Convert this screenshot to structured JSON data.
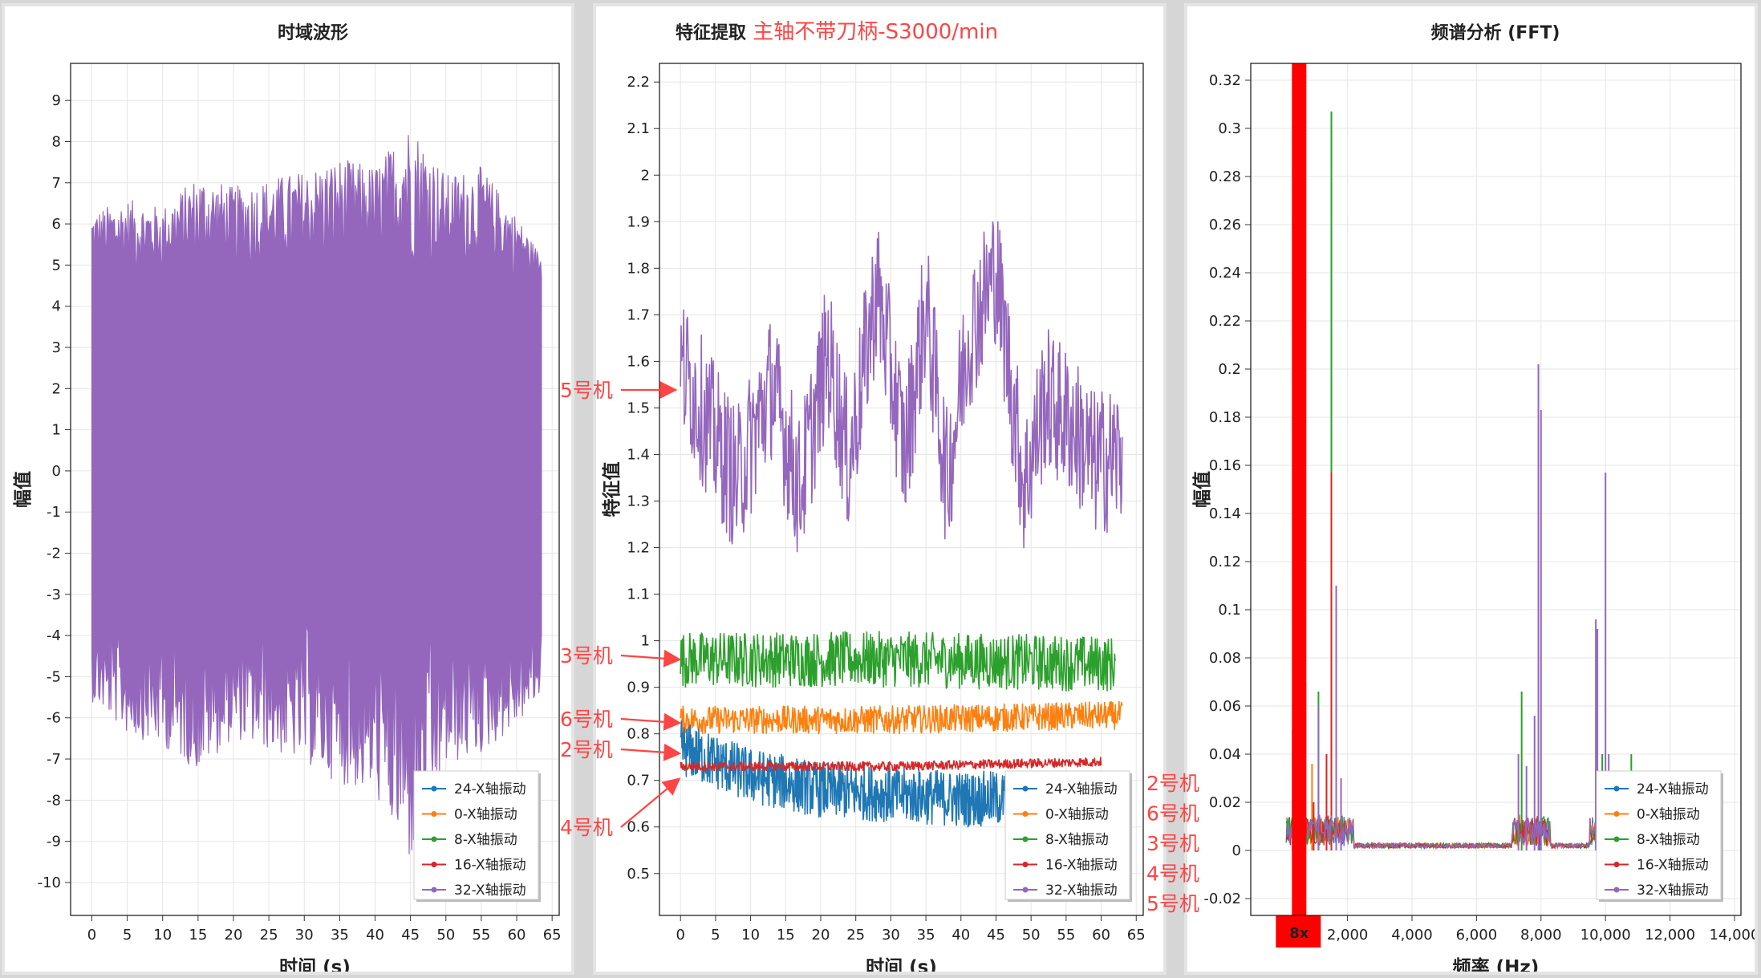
{
  "colors": {
    "s24": "#1f77b4",
    "s0": "#ff7f0e",
    "s8": "#2ca02c",
    "s16": "#d62728",
    "s32": "#9467bd",
    "annotation": "#ff4444",
    "marker": "#ff0000"
  },
  "legend": [
    "24-X轴振动",
    "0-X轴振动",
    "8-X轴振动",
    "16-X轴振动",
    "32-X轴振动"
  ],
  "header_suffix": "主轴不带刀柄-S3000/min",
  "chart_data": [
    {
      "type": "line",
      "title": "时域波形",
      "xlabel": "时间 (s)",
      "ylabel": "幅值",
      "xlim": [
        -3,
        66
      ],
      "ylim": [
        -10.8,
        9.9
      ],
      "xticks": [
        0,
        5,
        10,
        15,
        20,
        25,
        30,
        35,
        40,
        45,
        50,
        55,
        60,
        65
      ],
      "yticks": [
        -10,
        -9,
        -8,
        -7,
        -6,
        -5,
        -4,
        -3,
        -2,
        -1,
        0,
        1,
        2,
        3,
        4,
        5,
        6,
        7,
        8,
        9
      ],
      "grid": true,
      "legend_position": "bottom-right",
      "series": [
        {
          "name": "32-X轴振动",
          "color_key": "s32",
          "x": [
            0,
            5,
            10,
            15,
            20,
            25,
            30,
            35,
            40,
            45,
            50,
            55,
            60,
            63.5
          ],
          "upper": [
            6.3,
            6.6,
            6.4,
            7.2,
            6.9,
            7.1,
            7.3,
            7.6,
            7.4,
            8.5,
            7.2,
            7.4,
            6.2,
            5.2
          ],
          "lower": [
            -5.6,
            -6.4,
            -6.7,
            -7.3,
            -6.5,
            -6.8,
            -7.1,
            -7.6,
            -7.9,
            -9.6,
            -7.2,
            -6.9,
            -6.2,
            -5.5
          ],
          "core": [
            4.5,
            -3.5
          ]
        }
      ]
    },
    {
      "type": "line",
      "title": "特征提取",
      "xlabel": "时间 (s)",
      "ylabel": "特征值",
      "xlim": [
        -3,
        66
      ],
      "ylim": [
        0.41,
        2.24
      ],
      "xticks": [
        0,
        5,
        10,
        15,
        20,
        25,
        30,
        35,
        40,
        45,
        50,
        55,
        60,
        65
      ],
      "yticks": [
        0.5,
        0.6,
        0.7,
        0.8,
        0.9,
        1,
        1.1,
        1.2,
        1.3,
        1.4,
        1.5,
        1.6,
        1.7,
        1.8,
        1.9,
        2,
        2.1,
        2.2
      ],
      "grid": true,
      "legend_position": "bottom-right",
      "series": [
        {
          "name": "24-X轴振动",
          "color_key": "s24",
          "x_end": 48,
          "trend": [
            [
              0,
              0.77
            ],
            [
              10,
              0.71
            ],
            [
              20,
              0.68
            ],
            [
              30,
              0.67
            ],
            [
              40,
              0.66
            ],
            [
              48,
              0.66
            ]
          ],
          "noise": 0.06
        },
        {
          "name": "0-X轴振动",
          "color_key": "s0",
          "x_end": 63,
          "trend": [
            [
              0,
              0.83
            ],
            [
              30,
              0.83
            ],
            [
              63,
              0.84
            ]
          ],
          "noise": 0.03
        },
        {
          "name": "8-X轴振动",
          "color_key": "s8",
          "x_end": 62,
          "trend": [
            [
              0,
              0.96
            ],
            [
              30,
              0.96
            ],
            [
              62,
              0.95
            ]
          ],
          "noise": 0.06
        },
        {
          "name": "16-X轴振动",
          "color_key": "s16",
          "x_end": 60,
          "trend": [
            [
              0,
              0.73
            ],
            [
              30,
              0.73
            ],
            [
              60,
              0.74
            ]
          ],
          "noise": 0.01
        },
        {
          "name": "32-X轴振动",
          "color_key": "s32",
          "x_end": 63,
          "peaks": [
            [
              0.5,
              1.58
            ],
            [
              3.5,
              1.48
            ],
            [
              8,
              1.34
            ],
            [
              13,
              1.55
            ],
            [
              17,
              1.32
            ],
            [
              21,
              1.62
            ],
            [
              24,
              1.38
            ],
            [
              28,
              1.76
            ],
            [
              32,
              1.4
            ],
            [
              35,
              1.72
            ],
            [
              38,
              1.34
            ],
            [
              41,
              1.65
            ],
            [
              45,
              1.8
            ],
            [
              49,
              1.33
            ],
            [
              52,
              1.52
            ],
            [
              56,
              1.46
            ],
            [
              59,
              1.38
            ],
            [
              63,
              1.4
            ]
          ],
          "noise": 0.16
        }
      ]
    },
    {
      "type": "line",
      "title": "频谱分析 (FFT)",
      "xlabel": "频率 (Hz)",
      "ylabel": "幅值",
      "xlim": [
        -1000,
        14200
      ],
      "ylim": [
        -0.027,
        0.327
      ],
      "xticks": [
        2000,
        4000,
        6000,
        8000,
        10000,
        12000,
        14000
      ],
      "xtick_labels": [
        "2,000",
        "4,000",
        "6,000",
        "8,000",
        "10,000",
        "12,000",
        "14,000"
      ],
      "yticks": [
        -0.02,
        0,
        0.02,
        0.04,
        0.06,
        0.08,
        0.1,
        0.12,
        0.14,
        0.16,
        0.18,
        0.2,
        0.22,
        0.24,
        0.26,
        0.28,
        0.3,
        0.32
      ],
      "ytick_labels": [
        "-0.02",
        "0",
        "0.02",
        "0.04",
        "0.06",
        "0.08",
        "0.1",
        "0.12",
        "0.14",
        "0.16",
        "0.18",
        "0.2",
        "0.22",
        "0.24",
        "0.26",
        "0.28",
        "0.3",
        "0.32"
      ],
      "grid": true,
      "legend_position": "bottom-right",
      "series": [
        {
          "name": "24-X轴振动",
          "color_key": "s24",
          "peaks": [
            [
              400,
              0.006
            ],
            [
              7950,
              0.012
            ]
          ]
        },
        {
          "name": "0-X轴振动",
          "color_key": "s0",
          "peaks": [
            [
              900,
              0.036
            ],
            [
              1350,
              0.04
            ],
            [
              9700,
              0.034
            ]
          ]
        },
        {
          "name": "8-X轴振动",
          "color_key": "s8",
          "peaks": [
            [
              1100,
              0.066
            ],
            [
              1500,
              0.307
            ],
            [
              7400,
              0.066
            ],
            [
              9900,
              0.04
            ],
            [
              10800,
              0.04
            ]
          ]
        },
        {
          "name": "16-X轴振动",
          "color_key": "s16",
          "peaks": [
            [
              1500,
              0.157
            ],
            [
              1350,
              0.04
            ],
            [
              950,
              0.02
            ]
          ]
        },
        {
          "name": "32-X轴振动",
          "color_key": "s32",
          "peaks": [
            [
              300,
              0.05
            ],
            [
              700,
              0.07
            ],
            [
              1100,
              0.06
            ],
            [
              1650,
              0.11
            ],
            [
              1800,
              0.03
            ],
            [
              7300,
              0.04
            ],
            [
              7550,
              0.035
            ],
            [
              7800,
              0.056
            ],
            [
              7920,
              0.202
            ],
            [
              8000,
              0.183
            ],
            [
              9700,
              0.096
            ],
            [
              9750,
              0.092
            ],
            [
              10000,
              0.157
            ],
            [
              10100,
              0.04
            ]
          ]
        }
      ],
      "marker": {
        "label": "8x",
        "x": 500
      }
    }
  ],
  "annotations_left": [
    "5号机",
    "3号机",
    "6号机",
    "2号机",
    "4号机"
  ],
  "annotations_right": [
    "2号机",
    "6号机",
    "3号机",
    "4号机",
    "5号机"
  ]
}
